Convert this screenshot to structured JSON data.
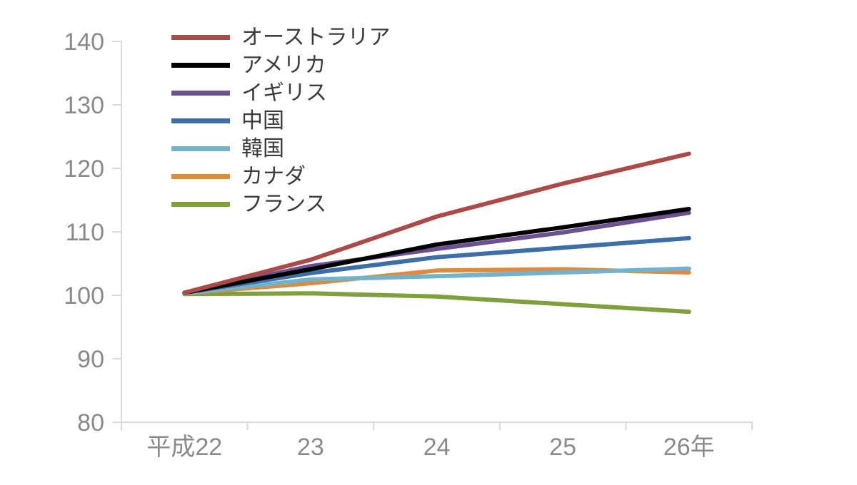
{
  "chart": {
    "background": "#ffffff",
    "axis_line_color": "#d9d9d9",
    "tick_color": "#d9d9d9",
    "axis_label_color": "#8a8a8a",
    "legend_text_color": "#3c3c3c"
  },
  "chart_data": {
    "type": "line",
    "title": "",
    "xlabel": "",
    "ylabel": "",
    "categories": [
      "平成22",
      "23",
      "24",
      "25",
      "26年"
    ],
    "ylim": [
      80,
      140
    ],
    "yticks": [
      80,
      90,
      100,
      110,
      120,
      130,
      140
    ],
    "grid": false,
    "legend_position": "top-left",
    "series": [
      {
        "key": "australia",
        "name": "オーストラリア",
        "color": "#AC4A47",
        "values": [
          100.4,
          105.6,
          112.4,
          117.6,
          122.3
        ]
      },
      {
        "key": "america",
        "name": "アメリカ",
        "color": "#000000",
        "values": [
          100.4,
          104.1,
          108.0,
          110.7,
          113.6
        ]
      },
      {
        "key": "uk",
        "name": "イギリス",
        "color": "#6B5190",
        "values": [
          100.4,
          104.6,
          107.3,
          109.9,
          113.0
        ]
      },
      {
        "key": "china",
        "name": "中国",
        "color": "#3E6EA8",
        "values": [
          100.4,
          103.5,
          106.0,
          107.5,
          109.0
        ]
      },
      {
        "key": "korea",
        "name": "韓国",
        "color": "#6FB3CE",
        "values": [
          100.3,
          102.5,
          103.0,
          103.6,
          104.2
        ]
      },
      {
        "key": "canada",
        "name": "カナダ",
        "color": "#E08A3C",
        "values": [
          100.3,
          101.9,
          103.9,
          104.1,
          103.6
        ]
      },
      {
        "key": "france",
        "name": "フランス",
        "color": "#80A03E",
        "values": [
          100.2,
          100.3,
          99.8,
          98.6,
          97.4
        ]
      }
    ]
  }
}
